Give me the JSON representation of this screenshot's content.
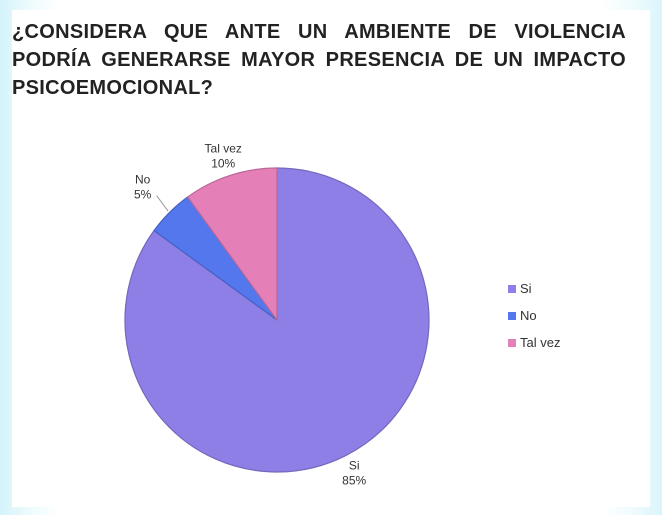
{
  "chart_data": {
    "type": "pie",
    "title": "¿CONSIDERA QUE ANTE UN AMBIENTE DE VIOLENCIA PODRÍA GENERARSE MAYOR PRESENCIA DE UN IMPACTO PSICOEMOCIONAL?",
    "categories": [
      "Si",
      "No",
      "Tal vez"
    ],
    "values": [
      85,
      5,
      10
    ],
    "value_labels": [
      "85%",
      "5%",
      "10%"
    ],
    "colors": [
      "#8e7fe6",
      "#5477ee",
      "#e47fb8"
    ],
    "legend_position": "right",
    "start_angle": "12 o'clock",
    "direction": "clockwise"
  }
}
